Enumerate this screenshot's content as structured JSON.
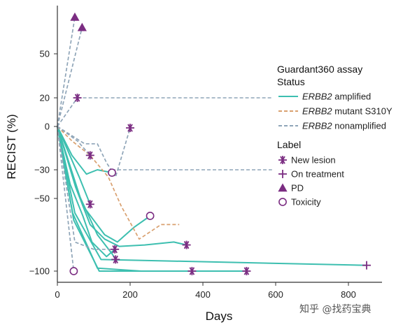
{
  "chart_data": {
    "type": "line",
    "xlabel": "Days",
    "ylabel": "RECIST (%)",
    "xlim": [
      0,
      880
    ],
    "x_ticks": [
      0,
      200,
      400,
      600,
      800
    ],
    "y_ticks": [
      {
        "value": 50,
        "label": "50"
      },
      {
        "value": 20,
        "label": "20"
      },
      {
        "value": 0,
        "label": "0"
      },
      {
        "value": -30,
        "label": "−30"
      },
      {
        "value": -50,
        "label": "−50"
      },
      {
        "value": -100,
        "label": "−100"
      }
    ],
    "y_scale": "nonlinear (upper region compressed)",
    "legend": {
      "placement": "right",
      "status_title_line1": "Guardant360 assay",
      "status_title_line2": "Status",
      "status_entries": [
        {
          "key": "amplified",
          "italic": "ERBB2",
          "text": " amplified",
          "color": "#3dbfb0",
          "dash": "solid"
        },
        {
          "key": "mutant",
          "italic": "ERBB2",
          "text": " mutant S310Y",
          "color": "#d9a06f",
          "dash": "dashed"
        },
        {
          "key": "nonamplified",
          "italic": "ERBB2",
          "text": " nonamplified",
          "color": "#8fa5b8",
          "dash": "dashed"
        }
      ],
      "label_title": "Label",
      "label_entries": [
        {
          "marker": "asterisk",
          "text": "New lesion"
        },
        {
          "marker": "plus",
          "text": "On treatment"
        },
        {
          "marker": "triangle",
          "text": "PD"
        },
        {
          "marker": "circle",
          "text": "Toxicity"
        }
      ]
    },
    "marker_color": "#7b2d82",
    "series": [
      {
        "status": "amplified",
        "x": [
          0,
          48,
          120,
          850
        ],
        "y": [
          0,
          -60,
          -92,
          -96
        ],
        "end_marker": "plus"
      },
      {
        "status": "amplified",
        "x": [
          0,
          45,
          115,
          520
        ],
        "y": [
          0,
          -65,
          -100,
          -100
        ],
        "end_marker": "asterisk"
      },
      {
        "status": "amplified",
        "x": [
          0,
          42,
          110,
          230,
          370
        ],
        "y": [
          0,
          -60,
          -98,
          -100,
          -100
        ],
        "end_marker": "asterisk"
      },
      {
        "status": "amplified",
        "x": [
          0,
          70,
          100,
          130,
          165,
          210,
          255
        ],
        "y": [
          0,
          -55,
          -65,
          -75,
          -80,
          -70,
          -62
        ],
        "end_marker": "circle"
      },
      {
        "status": "amplified",
        "x": [
          0,
          50,
          90,
          130,
          170,
          240,
          320,
          355
        ],
        "y": [
          0,
          -42,
          -68,
          -78,
          -83,
          -82,
          -80,
          -82
        ],
        "end_marker": "asterisk"
      },
      {
        "status": "amplified",
        "x": [
          0,
          55,
          110,
          150,
          160
        ],
        "y": [
          0,
          -45,
          -75,
          -88,
          -92
        ],
        "end_marker": "asterisk"
      },
      {
        "status": "amplified",
        "x": [
          0,
          35,
          70,
          95,
          135,
          158
        ],
        "y": [
          0,
          -40,
          -62,
          -80,
          -90,
          -85
        ],
        "end_marker": "asterisk"
      },
      {
        "status": "amplified",
        "x": [
          0,
          60,
          90
        ],
        "y": [
          0,
          -35,
          -54
        ],
        "end_marker": "asterisk"
      },
      {
        "status": "amplified",
        "x": [
          0,
          40,
          80,
          110,
          150
        ],
        "y": [
          0,
          -20,
          -33,
          -30,
          -32
        ],
        "end_marker": "circle"
      },
      {
        "status": "mutant",
        "x": [
          0,
          40,
          90,
          140,
          175,
          225,
          285,
          335
        ],
        "y": [
          0,
          -10,
          -20,
          -35,
          -55,
          -78,
          -68,
          -68
        ],
        "end_marker": null
      },
      {
        "status": "nonamplified",
        "x": [
          0,
          55,
          90
        ],
        "y": [
          0,
          -10,
          -20
        ],
        "end_marker": "asterisk"
      },
      {
        "status": "nonamplified",
        "x": [
          0,
          75,
          110,
          135,
          160,
          200
        ],
        "y": [
          0,
          -12,
          -12,
          -25,
          -35,
          -1
        ],
        "end_marker": "asterisk"
      },
      {
        "status": "nonamplified",
        "x": [
          0,
          48
        ],
        "y": [
          0,
          75
        ],
        "end_marker": "triangle"
      },
      {
        "status": "nonamplified",
        "x": [
          0,
          68
        ],
        "y": [
          0,
          68
        ],
        "end_marker": "triangle"
      },
      {
        "status": "nonamplified",
        "x": [
          0,
          55
        ],
        "y": [
          0,
          20
        ],
        "end_marker": "asterisk"
      },
      {
        "status": "nonamplified",
        "x": [
          0,
          45
        ],
        "y": [
          0,
          -100
        ],
        "end_marker": "circle"
      },
      {
        "status": "nonamplified",
        "x": [
          0,
          48,
          100,
          150
        ],
        "y": [
          0,
          -80,
          -85,
          -85
        ],
        "end_marker": null
      }
    ],
    "reference_lines": [
      {
        "status": "nonamplified",
        "x": [
          55,
          590
        ],
        "y": [
          20,
          20
        ]
      },
      {
        "status": "nonamplified",
        "x": [
          150,
          590
        ],
        "y": [
          -30,
          -30
        ]
      }
    ]
  },
  "watermark": "知乎 @找药宝典"
}
